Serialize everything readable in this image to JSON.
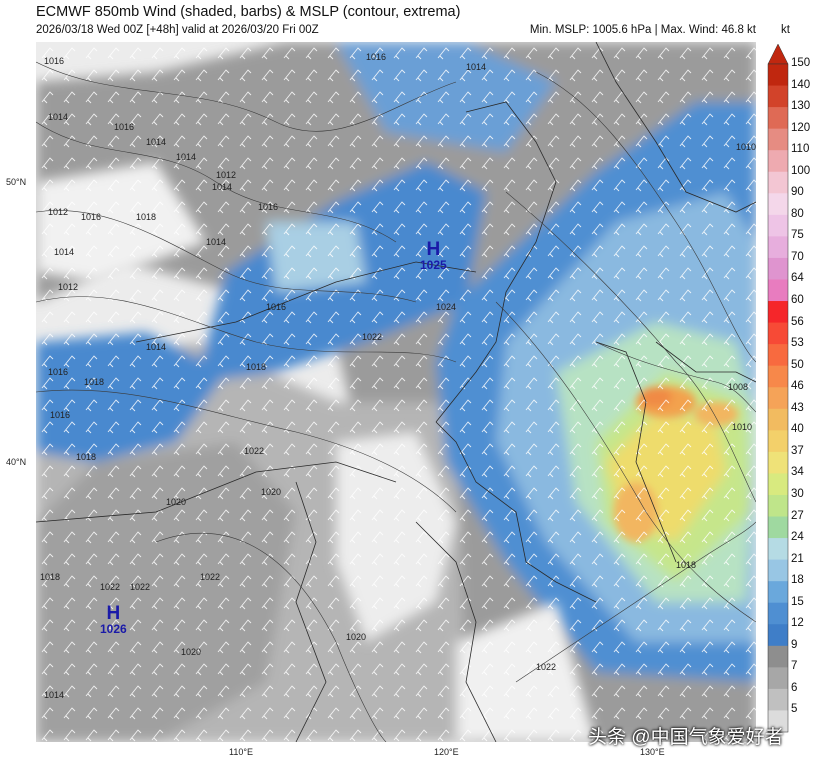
{
  "header": {
    "title": "ECMWF 850mb Wind (shaded, barbs) & MSLP (contour, extrema)",
    "run_info": "2026/03/18 Wed 00Z [+48h] valid at 2026/03/20 Fri 00Z",
    "stats": "Min. MSLP: 1005.6 hPa | Max. Wind: 46.8 kt",
    "unit": "kt"
  },
  "axes": {
    "lat_labels": [
      "50°N",
      "40°N"
    ],
    "lon_labels": [
      "110°E",
      "120°E",
      "130°E"
    ]
  },
  "pressure_centers": [
    {
      "symbol": "H",
      "value": "1025"
    },
    {
      "symbol": "H",
      "value": "1026"
    }
  ],
  "isobar_labels": [
    "1016",
    "1014",
    "1016",
    "1014",
    "1016",
    "1014",
    "1014",
    "1012",
    "1012",
    "1016",
    "1014",
    "1018",
    "1014",
    "1012",
    "1016",
    "1014",
    "1016",
    "1018",
    "1018",
    "1016",
    "1024",
    "1022",
    "1022",
    "1020",
    "1020",
    "1018",
    "1022",
    "1022",
    "1022",
    "1020",
    "1020",
    "1014",
    "1008",
    "1010",
    "1018",
    "1022",
    "1010",
    "1014",
    "1016",
    "1018"
  ],
  "colorbar": {
    "levels": [
      "150",
      "140",
      "130",
      "120",
      "110",
      "100",
      "90",
      "80",
      "75",
      "70",
      "64",
      "60",
      "56",
      "53",
      "50",
      "46",
      "43",
      "40",
      "37",
      "34",
      "30",
      "27",
      "24",
      "21",
      "18",
      "15",
      "12",
      "9",
      "7",
      "6",
      "5"
    ],
    "colors": [
      "#c0270f",
      "#d2432a",
      "#df6a55",
      "#e68c82",
      "#eeaab0",
      "#f3c6d3",
      "#f4d7ea",
      "#eec4e6",
      "#e7aedd",
      "#df94cf",
      "#e87cbf",
      "#f5262a",
      "#f74a36",
      "#f86a3f",
      "#f7884a",
      "#f5a358",
      "#f2bb60",
      "#f3d06a",
      "#efe278",
      "#d8ea7f",
      "#bfe58a",
      "#9fd9a0",
      "#b5dbe4",
      "#98c6e4",
      "#6aa8dc",
      "#4f8fd2",
      "#3f7ec8",
      "#8e8e8e",
      "#a7a7a7",
      "#c0c0c0",
      "#dcdcdc"
    ]
  },
  "watermark": "头条 @中国气象爱好者",
  "map_legend_colors": {
    "calm": "#e8e8e8",
    "weak": "#9a9a9a",
    "moderate_blue": "#4a89cf",
    "light_blue": "#a9cfe4",
    "green": "#b9e59a",
    "yellow": "#eedc6c",
    "orange": "#f3a24e"
  }
}
